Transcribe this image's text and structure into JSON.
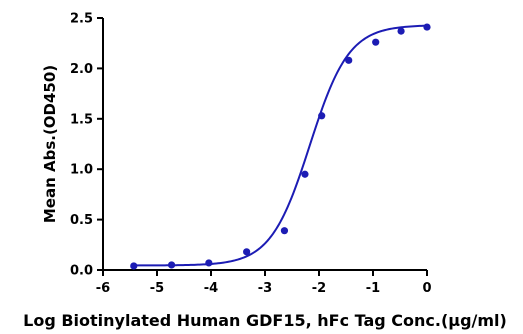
{
  "chart_data": {
    "type": "scatter",
    "title": "",
    "xlabel": "Log Biotinylated Human GDF15, hFc Tag Conc.(µg/ml)",
    "ylabel": "Mean Abs.(OD450)",
    "xlim": [
      -6,
      0
    ],
    "ylim": [
      0,
      2.5
    ],
    "x_ticks": [
      "-6",
      "-5",
      "-4",
      "-3",
      "-2",
      "-1",
      "0"
    ],
    "y_ticks": [
      "0.0",
      "0.5",
      "1.0",
      "1.5",
      "2.0",
      "2.5"
    ],
    "grid": false,
    "series": [
      {
        "color": "#1c1cb4",
        "x": [
          -5.43,
          -4.73,
          -4.04,
          -3.34,
          -2.64,
          -2.26,
          -1.95,
          -1.45,
          -0.95,
          -0.48,
          0.0
        ],
        "y": [
          0.04,
          0.05,
          0.07,
          0.18,
          0.39,
          0.95,
          1.53,
          2.08,
          2.26,
          2.37,
          2.41
        ]
      }
    ],
    "fit": {
      "type": "4PL",
      "bottom": 0.045,
      "top": 2.43,
      "log_ec50": -2.17,
      "hill": 1.2,
      "color": "#1c1cb4"
    }
  }
}
